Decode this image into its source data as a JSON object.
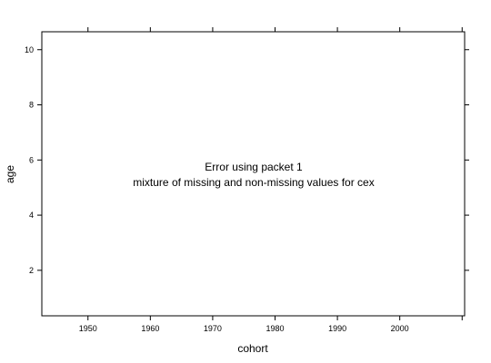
{
  "chart_data": {
    "type": "scatter",
    "title": "",
    "xlabel": "cohort",
    "ylabel": "age",
    "xlim": [
      1942.6,
      2010.4
    ],
    "ylim": [
      0.35,
      10.65
    ],
    "x_ticks": [
      1950,
      1960,
      1970,
      1980,
      1990,
      2000
    ],
    "y_ticks": [
      2,
      4,
      6,
      8,
      10
    ],
    "grid": false,
    "series": [],
    "message": {
      "line1": "Error using packet 1",
      "line2": "mixture of missing and non-missing values for cex"
    }
  }
}
